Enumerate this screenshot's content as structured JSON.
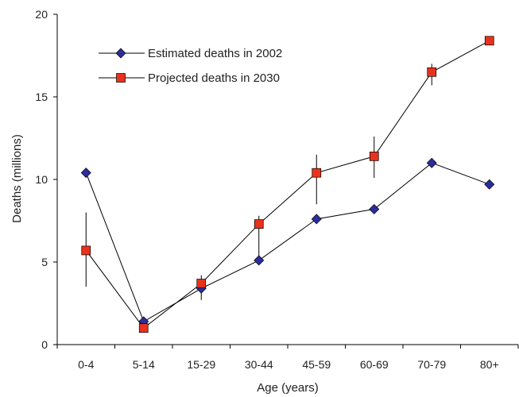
{
  "chart_data": {
    "type": "line",
    "title": "",
    "xlabel": "Age (years)",
    "ylabel": "Deaths (millions)",
    "ylim": [
      0,
      20
    ],
    "yticks": [
      0,
      5,
      10,
      15,
      20
    ],
    "categories": [
      "0-4",
      "5-14",
      "15-29",
      "30-44",
      "45-59",
      "60-69",
      "70-79",
      "80+"
    ],
    "grid": false,
    "legend_position": "top-left",
    "series": [
      {
        "name": "Estimated deaths in 2002",
        "marker": "diamond",
        "color": "#2b2d9e",
        "values": [
          10.4,
          1.4,
          3.4,
          5.1,
          7.6,
          8.2,
          11.0,
          9.7
        ]
      },
      {
        "name": "Projected deaths in 2030",
        "marker": "square",
        "color": "#e8321e",
        "values": [
          5.7,
          1.0,
          3.7,
          7.3,
          10.4,
          11.4,
          16.5,
          18.4
        ],
        "error_low": [
          3.5,
          0.8,
          2.7,
          4.9,
          8.5,
          10.1,
          15.7,
          18.4
        ],
        "error_high": [
          8.0,
          1.3,
          4.2,
          7.8,
          11.5,
          12.6,
          17.0,
          18.4
        ]
      }
    ]
  }
}
